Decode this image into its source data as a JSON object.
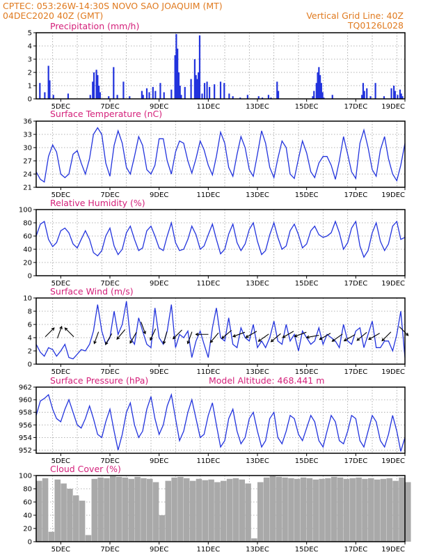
{
  "header": {
    "line1_left": "CPTEC:   053:26W-14:30S   NOVO SAO JOAQUIM (MT)",
    "line2_left": "04DEC2020 40Z (GMT)",
    "line2_right": "Vertical Grid Line: 40Z",
    "line3_right": "TQ0126L028"
  },
  "colors": {
    "header": "#e07a1f",
    "title": "#d4207a",
    "series": "#2233dd",
    "cloud": "#a9a9a9"
  },
  "chart_data": [
    {
      "id": "precip",
      "type": "bar",
      "title": "Precipitation (mm/h)",
      "ylim": [
        0,
        5
      ],
      "yticks": [
        0,
        1,
        2,
        3,
        4,
        5
      ],
      "xticks": [
        "5DEC",
        "7DEC",
        "9DEC",
        "11DEC",
        "13DEC",
        "15DEC",
        "17DEC",
        "19DEC"
      ],
      "x": [
        4.15,
        4.35,
        4.5,
        4.55,
        4.7,
        5.3,
        6.2,
        6.3,
        6.35,
        6.45,
        6.5,
        6.55,
        6.6,
        6.95,
        7.15,
        7.3,
        7.55,
        7.8,
        8.3,
        8.35,
        8.5,
        8.6,
        8.75,
        8.85,
        9.05,
        9.2,
        9.5,
        9.65,
        9.7,
        9.75,
        9.8,
        9.85,
        9.9,
        10.05,
        10.3,
        10.45,
        10.5,
        10.55,
        10.6,
        10.65,
        10.75,
        10.85,
        10.95,
        11.05,
        11.25,
        11.5,
        11.65,
        11.85,
        12.0,
        12.3,
        12.6,
        13.05,
        13.2,
        13.45,
        13.55,
        13.8,
        13.85,
        15.25,
        15.3,
        15.4,
        15.45,
        15.5,
        15.55,
        15.6,
        15.65,
        15.7,
        16.05,
        17.25,
        17.3,
        17.35,
        17.45,
        17.6,
        17.8,
        18.15,
        18.45,
        18.55,
        18.6,
        18.7,
        18.8,
        18.85,
        18.9
      ],
      "values": [
        1.2,
        0.5,
        2.5,
        1.4,
        0.3,
        0.4,
        0.3,
        1.3,
        2.0,
        2.2,
        1.8,
        1.0,
        0.5,
        0.2,
        2.4,
        0.3,
        1.3,
        0.2,
        0.6,
        0.3,
        0.8,
        0.5,
        0.9,
        0.6,
        1.2,
        0.5,
        0.7,
        3.3,
        4.9,
        3.8,
        2.0,
        1.0,
        0.3,
        0.9,
        1.5,
        3.0,
        1.8,
        1.5,
        2.0,
        4.8,
        0.4,
        1.2,
        1.3,
        0.9,
        1.1,
        1.3,
        1.2,
        0.4,
        0.2,
        0.1,
        0.3,
        0.2,
        0.1,
        0.3,
        0.1,
        1.3,
        0.6,
        0.2,
        0.6,
        1.2,
        2.0,
        2.4,
        1.8,
        1.2,
        0.5,
        0.1,
        0.3,
        0.3,
        1.2,
        0.6,
        0.8,
        0.2,
        1.2,
        0.2,
        0.8,
        1.0,
        0.6,
        0.3,
        0.7,
        0.4,
        0.2
      ]
    },
    {
      "id": "temp",
      "type": "line",
      "title": "Surface Temperature (nC)",
      "ylim": [
        21,
        36
      ],
      "yticks": [
        21,
        24,
        27,
        30,
        33,
        36
      ],
      "xticks": [
        "5DEC",
        "7DEC",
        "9DEC",
        "11DEC",
        "13DEC",
        "15DEC",
        "17DEC",
        "19DEC"
      ],
      "x": [
        4.0,
        4.17,
        4.33,
        4.5,
        4.67,
        4.83,
        5.0,
        5.17,
        5.33,
        5.5,
        5.67,
        5.83,
        6.0,
        6.17,
        6.33,
        6.5,
        6.67,
        6.83,
        7.0,
        7.17,
        7.33,
        7.5,
        7.67,
        7.83,
        8.0,
        8.17,
        8.33,
        8.5,
        8.67,
        8.83,
        9.0,
        9.17,
        9.33,
        9.5,
        9.67,
        9.83,
        10.0,
        10.17,
        10.33,
        10.5,
        10.67,
        10.83,
        11.0,
        11.17,
        11.33,
        11.5,
        11.67,
        11.83,
        12.0,
        12.17,
        12.33,
        12.5,
        12.67,
        12.83,
        13.0,
        13.17,
        13.33,
        13.5,
        13.67,
        13.83,
        14.0,
        14.17,
        14.33,
        14.5,
        14.67,
        14.83,
        15.0,
        15.17,
        15.33,
        15.5,
        15.67,
        15.83,
        16.0,
        16.17,
        16.33,
        16.5,
        16.67,
        16.83,
        17.0,
        17.17,
        17.33,
        17.5,
        17.67,
        17.83,
        18.0,
        18.17,
        18.33,
        18.5,
        18.67,
        18.83,
        19.0
      ],
      "y": [
        24.5,
        22.8,
        22.2,
        28.0,
        30.6,
        29.0,
        24.0,
        23.2,
        24.0,
        28.5,
        29.3,
        26.5,
        24.0,
        27.5,
        33.0,
        34.5,
        33.0,
        26.5,
        23.5,
        30.5,
        33.8,
        31.0,
        25.5,
        24.0,
        28.0,
        32.5,
        30.5,
        25.0,
        24.0,
        26.0,
        32.0,
        32.0,
        27.0,
        24.0,
        29.0,
        31.5,
        31.0,
        27.0,
        24.2,
        27.5,
        31.5,
        29.5,
        26.0,
        23.8,
        28.0,
        33.5,
        31.0,
        25.5,
        23.5,
        28.5,
        32.5,
        30.0,
        25.0,
        23.5,
        28.5,
        33.8,
        31.0,
        25.5,
        23.2,
        27.5,
        31.5,
        30.0,
        24.0,
        23.0,
        27.5,
        31.5,
        28.8,
        24.5,
        23.2,
        26.5,
        28.0,
        28.0,
        26.0,
        22.8,
        27.0,
        32.5,
        28.5,
        24.5,
        23.0,
        31.0,
        34.0,
        30.0,
        25.0,
        23.5,
        29.5,
        32.5,
        27.5,
        24.0,
        22.5,
        26.0,
        31.0
      ]
    },
    {
      "id": "rh",
      "type": "line",
      "title": "Relative Humidity (%)",
      "ylim": [
        0,
        100
      ],
      "yticks": [
        0,
        20,
        40,
        60,
        80,
        100
      ],
      "xticks": [
        "5DEC",
        "7DEC",
        "9DEC",
        "11DEC",
        "13DEC",
        "15DEC",
        "17DEC",
        "19DEC"
      ],
      "x": [
        4.0,
        4.17,
        4.33,
        4.5,
        4.67,
        4.83,
        5.0,
        5.17,
        5.33,
        5.5,
        5.67,
        5.83,
        6.0,
        6.17,
        6.33,
        6.5,
        6.67,
        6.83,
        7.0,
        7.17,
        7.33,
        7.5,
        7.67,
        7.83,
        8.0,
        8.17,
        8.33,
        8.5,
        8.67,
        8.83,
        9.0,
        9.17,
        9.33,
        9.5,
        9.67,
        9.83,
        10.0,
        10.17,
        10.33,
        10.5,
        10.67,
        10.83,
        11.0,
        11.17,
        11.33,
        11.5,
        11.67,
        11.83,
        12.0,
        12.17,
        12.33,
        12.5,
        12.67,
        12.83,
        13.0,
        13.17,
        13.33,
        13.5,
        13.67,
        13.83,
        14.0,
        14.17,
        14.33,
        14.5,
        14.67,
        14.83,
        15.0,
        15.17,
        15.33,
        15.5,
        15.67,
        15.83,
        16.0,
        16.17,
        16.33,
        16.5,
        16.67,
        16.83,
        17.0,
        17.17,
        17.33,
        17.5,
        17.67,
        17.83,
        18.0,
        18.17,
        18.33,
        18.5,
        18.67,
        18.83,
        19.0
      ],
      "y": [
        60,
        78,
        82,
        55,
        44,
        50,
        68,
        72,
        65,
        48,
        42,
        55,
        68,
        55,
        35,
        30,
        38,
        60,
        72,
        45,
        32,
        40,
        65,
        75,
        55,
        38,
        42,
        68,
        75,
        60,
        42,
        38,
        60,
        80,
        50,
        38,
        40,
        55,
        75,
        62,
        40,
        45,
        62,
        78,
        55,
        33,
        40,
        63,
        78,
        50,
        38,
        48,
        70,
        80,
        52,
        32,
        38,
        62,
        80,
        58,
        40,
        45,
        68,
        78,
        62,
        42,
        48,
        68,
        75,
        62,
        58,
        60,
        65,
        82,
        65,
        40,
        50,
        72,
        82,
        45,
        28,
        38,
        65,
        80,
        52,
        38,
        48,
        75,
        82,
        55,
        58
      ]
    },
    {
      "id": "wind",
      "type": "line",
      "title": "Surface Wind (m/s)",
      "ylim": [
        0,
        10
      ],
      "yticks": [
        0,
        2,
        4,
        6,
        8,
        10
      ],
      "xticks": [
        "5DEC",
        "7DEC",
        "9DEC",
        "11DEC",
        "13DEC",
        "15DEC",
        "17DEC",
        "19DEC"
      ],
      "x": [
        4.0,
        4.17,
        4.33,
        4.5,
        4.67,
        4.83,
        5.0,
        5.17,
        5.33,
        5.5,
        5.67,
        5.83,
        6.0,
        6.17,
        6.33,
        6.5,
        6.67,
        6.83,
        7.0,
        7.17,
        7.33,
        7.5,
        7.67,
        7.83,
        8.0,
        8.17,
        8.33,
        8.5,
        8.67,
        8.83,
        9.0,
        9.17,
        9.33,
        9.5,
        9.67,
        9.83,
        10.0,
        10.17,
        10.33,
        10.5,
        10.67,
        10.83,
        11.0,
        11.17,
        11.33,
        11.5,
        11.67,
        11.83,
        12.0,
        12.17,
        12.33,
        12.5,
        12.67,
        12.83,
        13.0,
        13.17,
        13.33,
        13.5,
        13.67,
        13.83,
        14.0,
        14.17,
        14.33,
        14.5,
        14.67,
        14.83,
        15.0,
        15.17,
        15.33,
        15.5,
        15.67,
        15.83,
        16.0,
        16.17,
        16.33,
        16.5,
        16.67,
        16.83,
        17.0,
        17.17,
        17.33,
        17.5,
        17.67,
        17.83,
        18.0,
        18.17,
        18.33,
        18.5,
        18.67,
        18.83,
        19.0
      ],
      "y": [
        3.0,
        1.8,
        1.2,
        2.5,
        2.2,
        1.2,
        2.0,
        3.0,
        1.0,
        0.8,
        1.5,
        2.2,
        2.0,
        3.0,
        5.0,
        9.0,
        5.0,
        3.0,
        4.0,
        8.0,
        4.5,
        6.0,
        9.5,
        4.0,
        3.0,
        7.0,
        5.0,
        3.0,
        2.5,
        8.5,
        4.0,
        3.0,
        5.0,
        9.0,
        2.5,
        4.5,
        4.0,
        5.0,
        1.0,
        3.5,
        5.0,
        3.0,
        1.0,
        5.5,
        8.5,
        4.0,
        3.5,
        7.0,
        3.0,
        2.5,
        5.5,
        4.0,
        3.5,
        6.0,
        2.5,
        3.5,
        2.5,
        4.0,
        6.5,
        3.5,
        3.0,
        6.0,
        3.5,
        4.5,
        2.0,
        5.0,
        4.0,
        3.0,
        3.5,
        5.5,
        3.0,
        4.5,
        4.0,
        3.5,
        2.5,
        6.0,
        3.5,
        3.0,
        5.0,
        5.5,
        2.5,
        4.5,
        6.5,
        2.5,
        2.5,
        3.5,
        3.5,
        2.0,
        4.5,
        8.0,
        1.0
      ],
      "barbs": [
        {
          "x": 4.55,
          "speed": 4.8,
          "dir": 225
        },
        {
          "x": 4.95,
          "speed": 4.8,
          "dir": 200
        },
        {
          "x": 5.35,
          "speed": 4.8,
          "dir": 135
        },
        {
          "x": 6.45,
          "speed": 4.0,
          "dir": 20
        },
        {
          "x": 6.95,
          "speed": 3.8,
          "dir": 30
        },
        {
          "x": 7.45,
          "speed": 4.5,
          "dir": 40
        },
        {
          "x": 7.95,
          "speed": 4.0,
          "dir": 30
        },
        {
          "x": 8.35,
          "speed": 5.5,
          "dir": 340
        },
        {
          "x": 8.75,
          "speed": 4.5,
          "dir": 25
        },
        {
          "x": 9.25,
          "speed": 4.0,
          "dir": 15
        },
        {
          "x": 9.75,
          "speed": 4.5,
          "dir": 45
        },
        {
          "x": 10.25,
          "speed": 4.0,
          "dir": 20
        },
        {
          "x": 10.75,
          "speed": 4.5,
          "dir": 90
        },
        {
          "x": 11.25,
          "speed": 4.0,
          "dir": 40
        },
        {
          "x": 11.75,
          "speed": 4.5,
          "dir": 50
        },
        {
          "x": 12.25,
          "speed": 4.5,
          "dir": 70
        },
        {
          "x": 12.75,
          "speed": 4.5,
          "dir": 60
        },
        {
          "x": 13.25,
          "speed": 4.0,
          "dir": 55
        },
        {
          "x": 13.75,
          "speed": 4.0,
          "dir": 50
        },
        {
          "x": 14.25,
          "speed": 4.5,
          "dir": 60
        },
        {
          "x": 14.75,
          "speed": 4.5,
          "dir": 70
        },
        {
          "x": 15.25,
          "speed": 4.2,
          "dir": 80
        },
        {
          "x": 15.75,
          "speed": 4.2,
          "dir": 60
        },
        {
          "x": 16.25,
          "speed": 4.0,
          "dir": 55
        },
        {
          "x": 16.75,
          "speed": 4.0,
          "dir": 60
        },
        {
          "x": 17.25,
          "speed": 4.2,
          "dir": 50
        },
        {
          "x": 17.75,
          "speed": 4.2,
          "dir": 60
        },
        {
          "x": 18.25,
          "speed": 4.2,
          "dir": 45
        },
        {
          "x": 18.95,
          "speed": 5.0,
          "dir": 315
        }
      ]
    },
    {
      "id": "pres",
      "type": "line",
      "title": "Surface Pressure (hPa)",
      "subtitle": "Model Altitude: 468.441 m",
      "ylim": [
        951.5,
        962
      ],
      "yticks": [
        952,
        954,
        956,
        958,
        960,
        962
      ],
      "xticks": [
        "5DEC",
        "7DEC",
        "9DEC",
        "11DEC",
        "13DEC",
        "15DEC",
        "17DEC",
        "19DEC"
      ],
      "x": [
        4.0,
        4.17,
        4.33,
        4.5,
        4.67,
        4.83,
        5.0,
        5.17,
        5.33,
        5.5,
        5.67,
        5.83,
        6.0,
        6.17,
        6.33,
        6.5,
        6.67,
        6.83,
        7.0,
        7.17,
        7.33,
        7.5,
        7.67,
        7.83,
        8.0,
        8.17,
        8.33,
        8.5,
        8.67,
        8.83,
        9.0,
        9.17,
        9.33,
        9.5,
        9.67,
        9.83,
        10.0,
        10.17,
        10.33,
        10.5,
        10.67,
        10.83,
        11.0,
        11.17,
        11.33,
        11.5,
        11.67,
        11.83,
        12.0,
        12.17,
        12.33,
        12.5,
        12.67,
        12.83,
        13.0,
        13.17,
        13.33,
        13.5,
        13.67,
        13.83,
        14.0,
        14.17,
        14.33,
        14.5,
        14.67,
        14.83,
        15.0,
        15.17,
        15.33,
        15.5,
        15.67,
        15.83,
        16.0,
        16.17,
        16.33,
        16.5,
        16.67,
        16.83,
        17.0,
        17.17,
        17.33,
        17.5,
        17.67,
        17.83,
        18.0,
        18.17,
        18.33,
        18.5,
        18.67,
        18.83,
        19.0
      ],
      "y": [
        957.5,
        959.8,
        960.2,
        960.8,
        958.5,
        957.0,
        956.5,
        958.5,
        960.0,
        958.0,
        956.0,
        955.5,
        957.0,
        959.0,
        957.0,
        954.5,
        954.0,
        956.5,
        958.5,
        955.0,
        952.0,
        954.5,
        958.0,
        959.5,
        956.0,
        954.0,
        955.0,
        958.5,
        960.5,
        957.0,
        954.5,
        956.0,
        959.0,
        960.8,
        957.0,
        953.5,
        955.0,
        958.0,
        960.0,
        957.0,
        954.0,
        954.5,
        957.5,
        959.5,
        956.0,
        952.5,
        953.5,
        957.0,
        958.5,
        955.0,
        953.0,
        954.0,
        957.0,
        958.0,
        955.0,
        952.5,
        953.5,
        957.0,
        958.0,
        954.0,
        953.0,
        955.0,
        957.5,
        957.0,
        954.5,
        953.5,
        955.5,
        957.5,
        956.5,
        953.5,
        952.5,
        955.0,
        957.5,
        956.5,
        953.5,
        953.0,
        955.0,
        957.5,
        957.0,
        953.5,
        952.5,
        955.0,
        957.5,
        956.5,
        953.5,
        952.5,
        954.5,
        957.5,
        955.0,
        951.8,
        954.0
      ]
    },
    {
      "id": "cloud",
      "type": "bar",
      "title": "Cloud Cover (%)",
      "ylim": [
        0,
        100
      ],
      "yticks": [
        0,
        20,
        40,
        60,
        80,
        100
      ],
      "xticks": [
        "5DEC",
        "7DEC",
        "9DEC",
        "11DEC",
        "13DEC",
        "15DEC",
        "17DEC",
        "19DEC"
      ],
      "x": [
        4.0,
        4.25,
        4.5,
        4.75,
        5.0,
        5.25,
        5.5,
        5.75,
        6.0,
        6.25,
        6.5,
        6.75,
        7.0,
        7.25,
        7.5,
        7.75,
        8.0,
        8.25,
        8.5,
        8.75,
        9.0,
        9.25,
        9.5,
        9.75,
        10.0,
        10.25,
        10.5,
        10.75,
        11.0,
        11.25,
        11.5,
        11.75,
        12.0,
        12.25,
        12.5,
        12.75,
        13.0,
        13.25,
        13.5,
        13.75,
        14.0,
        14.25,
        14.5,
        14.75,
        15.0,
        15.25,
        15.5,
        15.75,
        16.0,
        16.25,
        16.5,
        16.75,
        17.0,
        17.25,
        17.5,
        17.75,
        18.0,
        18.25,
        18.5,
        18.75,
        19.0
      ],
      "values": [
        92,
        96,
        15,
        94,
        88,
        80,
        70,
        62,
        10,
        95,
        97,
        96,
        99,
        98,
        97,
        95,
        98,
        96,
        95,
        90,
        40,
        92,
        97,
        98,
        96,
        92,
        95,
        93,
        94,
        90,
        92,
        95,
        96,
        94,
        88,
        5,
        90,
        97,
        99,
        98,
        97,
        96,
        95,
        97,
        96,
        94,
        95,
        96,
        98,
        97,
        95,
        96,
        97,
        95,
        96,
        94,
        95,
        96,
        92,
        97,
        90
      ]
    }
  ]
}
